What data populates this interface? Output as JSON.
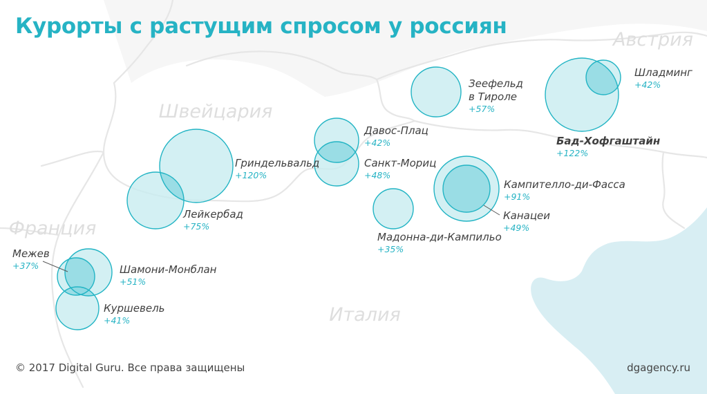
{
  "title": "Курорты с растущим спросом у россиян",
  "footer": {
    "copyright": "© 2017 Digital Guru. Все права защищены",
    "site": "dgagency.ru"
  },
  "countries": [
    "Австрия",
    "Швейцария",
    "Франция",
    "Италия"
  ],
  "resorts": [
    {
      "lines": [
        "Грindельвальд"
      ],
      "growth": "+120%",
      "bold": false
    },
    {
      "lines": [
        "Лейкербад"
      ],
      "growth": "+75%",
      "bold": false
    }
  ],
  "colors": {
    "accent": "#26b3c4",
    "bubble_fill": "#c6ecf0",
    "bubble_overlap": "#8fd8e2",
    "bubble_stroke": "#22b4c4",
    "sea": "#d8eef3",
    "border": "#e6e6e6"
  }
}
